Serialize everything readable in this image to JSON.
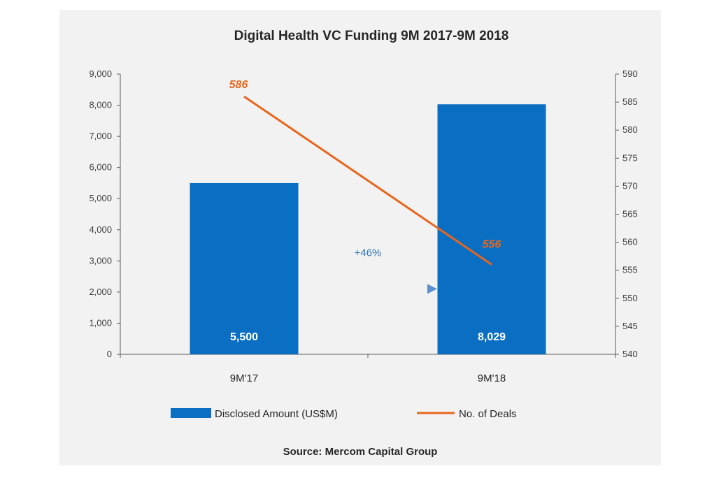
{
  "chart_data": {
    "type": "bar",
    "title": "Digital Health VC Funding 9M 2017-9M 2018",
    "categories": [
      "9M'17",
      "9M'18"
    ],
    "series": [
      {
        "name": "Disclosed Amount (US$M)",
        "type": "bar",
        "axis": "left",
        "values": [
          5500,
          8029
        ],
        "labels": [
          "5,500",
          "8,029"
        ]
      },
      {
        "name": "No. of Deals",
        "type": "line",
        "axis": "right",
        "values": [
          586,
          556
        ],
        "labels": [
          "586",
          "556"
        ]
      }
    ],
    "y_left": {
      "min": 0,
      "max": 9000,
      "step": 1000,
      "ticks": [
        "0",
        "1,000",
        "2,000",
        "3,000",
        "4,000",
        "5,000",
        "6,000",
        "7,000",
        "8,000",
        "9,000"
      ]
    },
    "y_right": {
      "min": 540,
      "max": 590,
      "step": 5,
      "ticks": [
        "540",
        "545",
        "550",
        "555",
        "560",
        "565",
        "570",
        "575",
        "580",
        "585",
        "590"
      ]
    },
    "annotation": "+46%",
    "source": "Source: Mercom Capital Group",
    "legend_position": "bottom",
    "grid": false,
    "colors": {
      "bar": "#0a6fc2",
      "line": "#e8661c",
      "arrow": "#5b8fd0",
      "growth_text": "#2e75b6",
      "line_label": "#e8661c"
    }
  }
}
